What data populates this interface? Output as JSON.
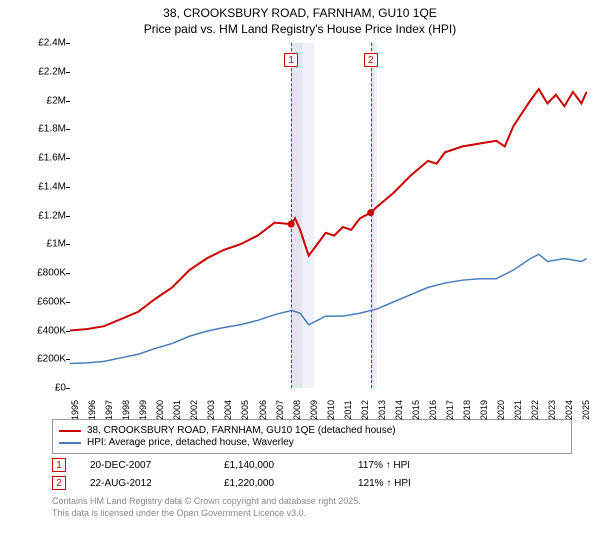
{
  "title_line1": "38, CROOKSBURY ROAD, FARNHAM, GU10 1QE",
  "title_line2": "Price paid vs. HM Land Registry's House Price Index (HPI)",
  "chart": {
    "type": "line",
    "background_color": "#ffffff",
    "shade_color": "#e4e4ee",
    "shade_color2": "#cbd2e6",
    "x_start": 1995,
    "x_end": 2025.5,
    "x_ticks": [
      1995,
      1996,
      1997,
      1998,
      1999,
      2000,
      2001,
      2002,
      2003,
      2004,
      2005,
      2006,
      2007,
      2008,
      2009,
      2010,
      2011,
      2012,
      2013,
      2014,
      2015,
      2016,
      2017,
      2018,
      2019,
      2020,
      2021,
      2022,
      2023,
      2024,
      2025
    ],
    "y_min": 0,
    "y_max": 2400000,
    "y_ticks": [
      {
        "v": 0,
        "label": "£0"
      },
      {
        "v": 200000,
        "label": "£200K"
      },
      {
        "v": 400000,
        "label": "£400K"
      },
      {
        "v": 600000,
        "label": "£600K"
      },
      {
        "v": 800000,
        "label": "£800K"
      },
      {
        "v": 1000000,
        "label": "£1M"
      },
      {
        "v": 1200000,
        "label": "£1.2M"
      },
      {
        "v": 1400000,
        "label": "£1.4M"
      },
      {
        "v": 1600000,
        "label": "£1.6M"
      },
      {
        "v": 1800000,
        "label": "£1.8M"
      },
      {
        "v": 2000000,
        "label": "£2M"
      },
      {
        "v": 2200000,
        "label": "£2.2M"
      },
      {
        "v": 2400000,
        "label": "£2.4M"
      }
    ],
    "series": [
      {
        "name": "property",
        "label": "38, CROOKSBURY ROAD, FARNHAM, GU10 1QE (detached house)",
        "color": "#cc0000",
        "width": 2,
        "points": [
          [
            1995,
            400000
          ],
          [
            1996,
            410000
          ],
          [
            1997,
            430000
          ],
          [
            1998,
            480000
          ],
          [
            1999,
            530000
          ],
          [
            2000,
            620000
          ],
          [
            2001,
            700000
          ],
          [
            2002,
            820000
          ],
          [
            2003,
            900000
          ],
          [
            2004,
            960000
          ],
          [
            2005,
            1000000
          ],
          [
            2006,
            1060000
          ],
          [
            2007,
            1150000
          ],
          [
            2007.97,
            1140000
          ],
          [
            2008.2,
            1180000
          ],
          [
            2008.5,
            1100000
          ],
          [
            2009,
            920000
          ],
          [
            2009.5,
            1000000
          ],
          [
            2010,
            1080000
          ],
          [
            2010.5,
            1060000
          ],
          [
            2011,
            1120000
          ],
          [
            2011.5,
            1100000
          ],
          [
            2012,
            1180000
          ],
          [
            2012.64,
            1220000
          ],
          [
            2013,
            1260000
          ],
          [
            2014,
            1360000
          ],
          [
            2015,
            1480000
          ],
          [
            2016,
            1580000
          ],
          [
            2016.5,
            1560000
          ],
          [
            2017,
            1640000
          ],
          [
            2018,
            1680000
          ],
          [
            2019,
            1700000
          ],
          [
            2020,
            1720000
          ],
          [
            2020.5,
            1680000
          ],
          [
            2021,
            1820000
          ],
          [
            2022,
            2000000
          ],
          [
            2022.5,
            2080000
          ],
          [
            2023,
            1980000
          ],
          [
            2023.5,
            2040000
          ],
          [
            2024,
            1960000
          ],
          [
            2024.5,
            2060000
          ],
          [
            2025,
            1980000
          ],
          [
            2025.3,
            2060000
          ]
        ]
      },
      {
        "name": "hpi",
        "label": "HPI: Average price, detached house, Waverley",
        "color": "#4a7ebb",
        "width": 1.5,
        "points": [
          [
            1995,
            170000
          ],
          [
            1996,
            175000
          ],
          [
            1997,
            185000
          ],
          [
            1998,
            210000
          ],
          [
            1999,
            235000
          ],
          [
            2000,
            275000
          ],
          [
            2001,
            310000
          ],
          [
            2002,
            360000
          ],
          [
            2003,
            395000
          ],
          [
            2004,
            420000
          ],
          [
            2005,
            440000
          ],
          [
            2006,
            470000
          ],
          [
            2007,
            510000
          ],
          [
            2008,
            540000
          ],
          [
            2008.5,
            520000
          ],
          [
            2009,
            440000
          ],
          [
            2009.5,
            470000
          ],
          [
            2010,
            500000
          ],
          [
            2011,
            500000
          ],
          [
            2012,
            520000
          ],
          [
            2013,
            550000
          ],
          [
            2014,
            600000
          ],
          [
            2015,
            650000
          ],
          [
            2016,
            700000
          ],
          [
            2017,
            730000
          ],
          [
            2018,
            750000
          ],
          [
            2019,
            760000
          ],
          [
            2020,
            760000
          ],
          [
            2021,
            820000
          ],
          [
            2022,
            900000
          ],
          [
            2022.5,
            930000
          ],
          [
            2023,
            880000
          ],
          [
            2024,
            900000
          ],
          [
            2025,
            880000
          ],
          [
            2025.3,
            900000
          ]
        ]
      }
    ],
    "markers": [
      {
        "n": "1",
        "x": 2007.97,
        "y": 1140000,
        "shade_to": 2009.3
      },
      {
        "n": "2",
        "x": 2012.64,
        "y": 1220000,
        "shade_to": 2013.0
      }
    ]
  },
  "legend": [
    {
      "color": "#cc0000",
      "label": "38, CROOKSBURY ROAD, FARNHAM, GU10 1QE (detached house)"
    },
    {
      "color": "#4a7ebb",
      "label": "HPI: Average price, detached house, Waverley"
    }
  ],
  "sales": [
    {
      "n": "1",
      "date": "20-DEC-2007",
      "price": "£1,140,000",
      "pct": "117% ↑ HPI"
    },
    {
      "n": "2",
      "date": "22-AUG-2012",
      "price": "£1,220,000",
      "pct": "121% ↑ HPI"
    }
  ],
  "footer_line1": "Contains HM Land Registry data © Crown copyright and database right 2025.",
  "footer_line2": "This data is licensed under the Open Government Licence v3.0."
}
